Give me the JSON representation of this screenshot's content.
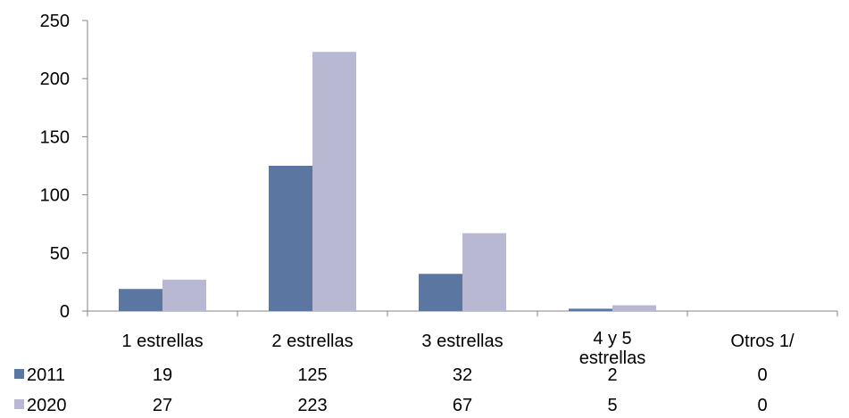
{
  "chart_data": {
    "type": "bar",
    "categories": [
      "1 estrellas",
      "2 estrellas",
      "3 estrellas",
      "4 y 5 estrellas",
      "Otros 1/"
    ],
    "series": [
      {
        "name": "2011",
        "values": [
          19,
          125,
          32,
          2,
          0
        ],
        "color": "#5B77A1"
      },
      {
        "name": "2020",
        "values": [
          27,
          223,
          67,
          5,
          0
        ],
        "color": "#B8B8D3"
      }
    ],
    "ylim": [
      0,
      250
    ],
    "yticks": [
      "0",
      "50",
      "100",
      "150",
      "200",
      "250"
    ],
    "data_table": [
      [
        "19",
        "125",
        "32",
        "2",
        "0"
      ],
      [
        "27",
        "223",
        "67",
        "5",
        "0"
      ]
    ],
    "grid": false,
    "legend": "data-table-rows"
  }
}
